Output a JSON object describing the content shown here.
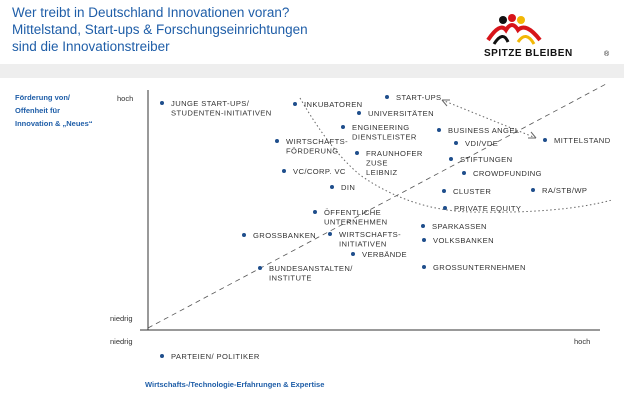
{
  "header": {
    "title_lines": [
      "Wer treibt in Deutschland Innovationen voran?",
      "Mittelstand, Start-ups & Forschungseinrichtungen",
      "sind die Innovationstreiber"
    ],
    "logo": "SPITZE BLEIBEN",
    "logo_mark": "®"
  },
  "axes": {
    "y_label_lines": [
      "Förderung von/",
      "Offenheit für",
      "Innovation & „Neues“"
    ],
    "y_high": "hoch",
    "y_low": "niedrig",
    "x_low": "niedrig",
    "x_high": "hoch",
    "x_label": "Wirtschafts-/Technologie-Erfahrungen & Expertise"
  },
  "nodes": [
    {
      "lines": [
        "JUNGE START-UPS/",
        "STUDENTEN-INITIATIVEN"
      ]
    },
    {
      "lines": [
        "INKUBATOREN"
      ]
    },
    {
      "lines": [
        "START-UPS"
      ]
    },
    {
      "lines": [
        "UNIVERSITÄTEN"
      ]
    },
    {
      "lines": [
        "ENGINEERING",
        "DIENSTLEISTER"
      ]
    },
    {
      "lines": [
        "WIRTSCHAFTS-",
        "FÖRDERUNG"
      ]
    },
    {
      "lines": [
        "FRAUNHOFER",
        "ZUSE",
        "LEIBNIZ"
      ]
    },
    {
      "lines": [
        "BUSINESS ANGEL"
      ]
    },
    {
      "lines": [
        "MITTELSTAND"
      ]
    },
    {
      "lines": [
        "VDI/VDE"
      ]
    },
    {
      "lines": [
        "STIFTUNGEN"
      ]
    },
    {
      "lines": [
        "CROWDFUNDING"
      ]
    },
    {
      "lines": [
        "VC/CORP. VC"
      ]
    },
    {
      "lines": [
        "DIN"
      ]
    },
    {
      "lines": [
        "CLUSTER"
      ]
    },
    {
      "lines": [
        "RA/STB/WP"
      ]
    },
    {
      "lines": [
        "PRIVATE EQUITY"
      ]
    },
    {
      "lines": [
        "ÖFFENTLICHE",
        "UNTERNEHMEN"
      ]
    },
    {
      "lines": [
        "SPARKASSEN"
      ]
    },
    {
      "lines": [
        "GROSSBANKEN"
      ]
    },
    {
      "lines": [
        "WIRTSCHAFTS-",
        "INITIATIVEN"
      ]
    },
    {
      "lines": [
        "VOLKSBANKEN"
      ]
    },
    {
      "lines": [
        "VERBÄNDE"
      ]
    },
    {
      "lines": [
        "BUNDESANSTALTEN/",
        "INSTITUTE"
      ]
    },
    {
      "lines": [
        "GROSSUNTERNEHMEN"
      ]
    },
    {
      "lines": [
        "PARTEIEN/ POLITIKER"
      ]
    }
  ]
}
